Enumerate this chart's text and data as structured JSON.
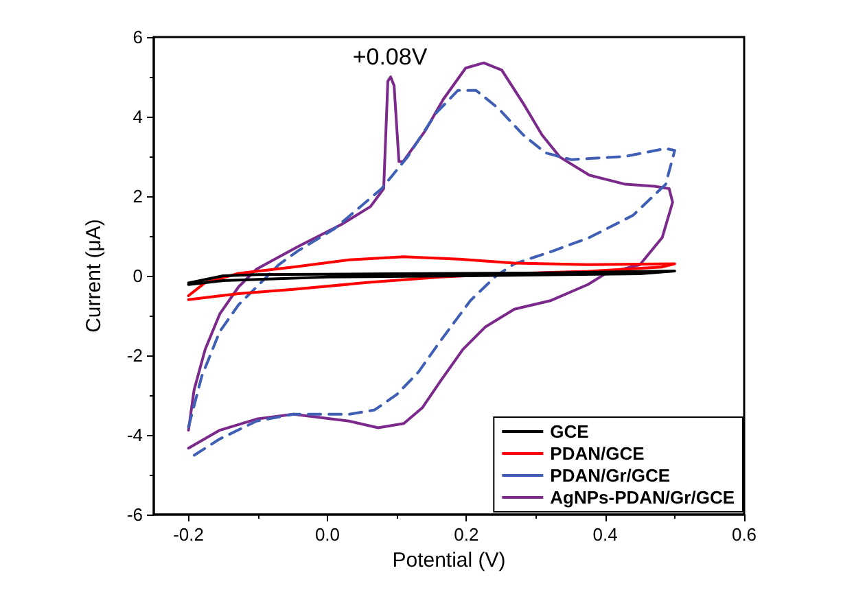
{
  "chart_data": {
    "type": "line",
    "xlabel": "Potential (V)",
    "ylabel": "Current (μA)",
    "xlim": [
      -0.25,
      0.6
    ],
    "xticks": [
      -0.2,
      {
        "value": 0,
        "label": "0.0"
      },
      0.2,
      0.4,
      0.6
    ],
    "ylim": [
      -6,
      6
    ],
    "yticks": [
      -6,
      -4,
      -2,
      0,
      2,
      4,
      6
    ],
    "grid": false,
    "legend": "bottom right",
    "marker": "none",
    "annotations": [
      {
        "text": "+0.08V",
        "x": 0.09,
        "y": 5.0
      }
    ],
    "series": [
      {
        "name": "GCE",
        "color": "#000000",
        "line_style": "solid",
        "x": [
          -0.2,
          -0.15,
          -0.1,
          0.1,
          0.3,
          0.5,
          0.45,
          0.2,
          0.0,
          -0.15,
          -0.2
        ],
        "values": [
          -0.18,
          0.0,
          0.03,
          0.05,
          0.07,
          0.12,
          0.05,
          0.0,
          -0.03,
          -0.12,
          -0.22
        ]
      },
      {
        "name": "PDAN/GCE",
        "color": "#ff0000",
        "line_style": "solid",
        "x": [
          -0.2,
          -0.176,
          -0.128,
          -0.049,
          0.031,
          0.11,
          0.19,
          0.269,
          0.375,
          0.5,
          0.481,
          0.375,
          0.269,
          0.163,
          0.057,
          -0.049,
          -0.128,
          -0.2
        ],
        "values": [
          -0.5,
          -0.17,
          0.06,
          0.22,
          0.4,
          0.48,
          0.42,
          0.32,
          0.28,
          0.3,
          0.22,
          0.11,
          0.06,
          -0.03,
          -0.17,
          -0.34,
          -0.45,
          -0.6
        ]
      },
      {
        "name": "PDAN/Gr/GCE",
        "color": "#3f5fb5",
        "line_style": "dashed",
        "x": [
          -0.2,
          -0.181,
          -0.155,
          -0.128,
          -0.102,
          -0.07,
          -0.043,
          0.01,
          0.078,
          0.115,
          0.157,
          0.188,
          0.214,
          0.246,
          0.282,
          0.314,
          0.351,
          0.429,
          0.487,
          0.5,
          0.487,
          0.44,
          0.377,
          0.324,
          0.269,
          0.243,
          0.206,
          0.163,
          0.131,
          0.1,
          0.068,
          0.031,
          -0.049,
          -0.102,
          -0.155,
          -0.2
        ],
        "values": [
          -3.8,
          -2.53,
          -1.4,
          -0.73,
          -0.28,
          0.28,
          0.62,
          1.18,
          2.19,
          2.98,
          4.1,
          4.66,
          4.66,
          4.21,
          3.54,
          3.09,
          2.92,
          3.0,
          3.2,
          3.15,
          2.3,
          1.52,
          0.96,
          0.62,
          0.3,
          0.0,
          -0.62,
          -1.63,
          -2.42,
          -2.98,
          -3.37,
          -3.48,
          -3.48,
          -3.65,
          -4.1,
          -4.6
        ]
      },
      {
        "name": "AgNPs-PDAN/Gr/GCE",
        "color": "#7b2a8c",
        "line_style": "solid",
        "x": [
          -0.2,
          -0.192,
          -0.176,
          -0.155,
          -0.128,
          -0.102,
          -0.043,
          0.02,
          0.062,
          0.081,
          0.083,
          0.087,
          0.091,
          0.096,
          0.103,
          0.109,
          0.141,
          0.167,
          0.199,
          0.225,
          0.251,
          0.282,
          0.309,
          0.335,
          0.377,
          0.429,
          0.471,
          0.492,
          0.497,
          0.482,
          0.45,
          0.4,
          0.375,
          0.322,
          0.269,
          0.227,
          0.195,
          0.163,
          0.137,
          0.11,
          0.073,
          0.031,
          -0.049,
          -0.102,
          -0.155,
          -0.2
        ],
        "values": [
          -3.88,
          -2.87,
          -1.85,
          -0.96,
          -0.28,
          0.17,
          0.73,
          1.29,
          1.74,
          2.19,
          3.09,
          4.89,
          5.0,
          4.78,
          2.87,
          2.87,
          3.65,
          4.44,
          5.22,
          5.35,
          5.17,
          4.33,
          3.54,
          2.98,
          2.53,
          2.3,
          2.25,
          2.19,
          1.85,
          0.96,
          0.28,
          0.05,
          -0.22,
          -0.62,
          -0.84,
          -1.29,
          -1.85,
          -2.64,
          -3.31,
          -3.71,
          -3.82,
          -3.65,
          -3.48,
          -3.6,
          -3.88,
          -4.33
        ]
      }
    ]
  }
}
